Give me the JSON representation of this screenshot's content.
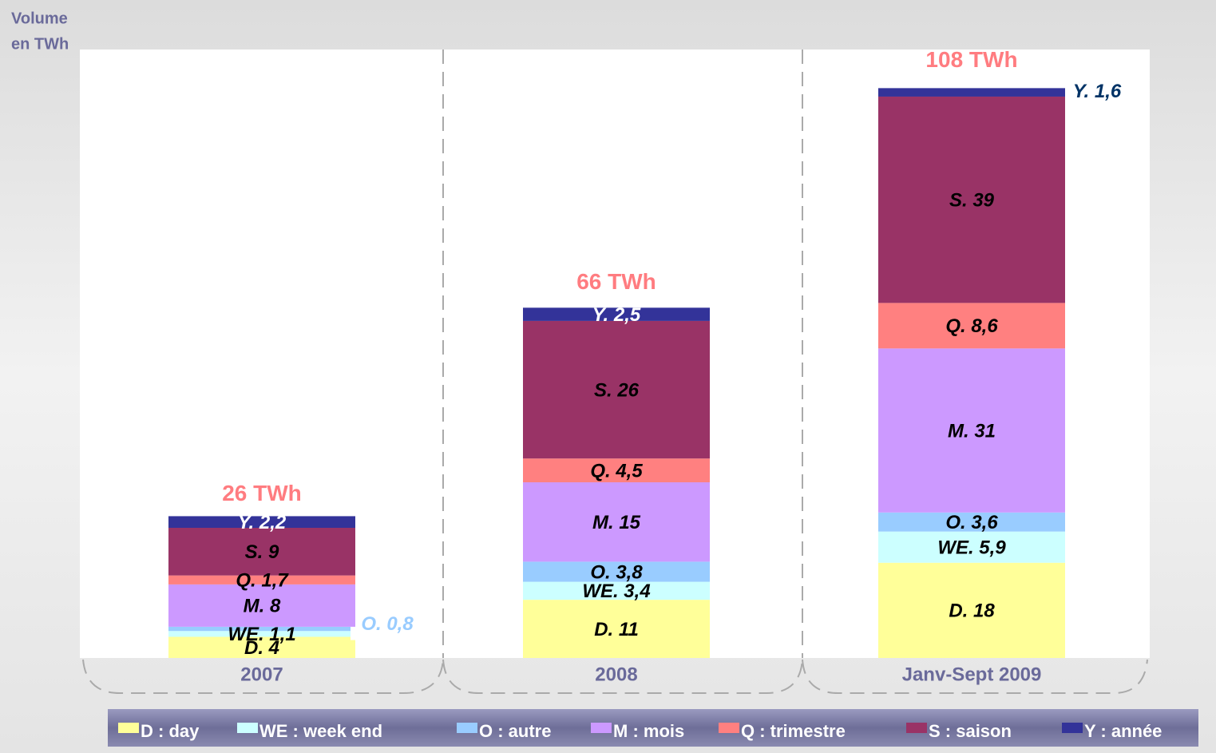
{
  "chart_data": {
    "type": "stacked_bar",
    "y_label_lines": [
      "Volume",
      "en TWh"
    ],
    "categories": [
      "2007",
      "2008",
      "Janv-Sept 2009"
    ],
    "series": [
      {
        "name": "D : day",
        "color": "#ffff99",
        "values": [
          4,
          11,
          18
        ],
        "value_labels": [
          "D.  4",
          "D.  11",
          "D.  18"
        ]
      },
      {
        "name": "WE : week end",
        "color": "#ccffff",
        "values": [
          1.1,
          3.4,
          5.9
        ],
        "value_labels": [
          "WE.  1,1",
          "WE.  3,4",
          "WE.  5,9"
        ]
      },
      {
        "name": "O : autre",
        "color": "#99ccff",
        "values": [
          0.8,
          3.8,
          3.6
        ],
        "value_labels": [
          "O.  0,8",
          "O.  3,8",
          "O.  3,6"
        ]
      },
      {
        "name": "M : mois",
        "color": "#cc99ff",
        "values": [
          8,
          15,
          31
        ],
        "value_labels": [
          "M.  8",
          "M.  15",
          "M.  31"
        ]
      },
      {
        "name": "Q : trimestre",
        "color": "#ff8080",
        "values": [
          1.7,
          4.5,
          8.6
        ],
        "value_labels": [
          "Q.  1,7",
          "Q.  4,5",
          "Q.  8,6"
        ]
      },
      {
        "name": "S : saison",
        "color": "#993366",
        "values": [
          9,
          26,
          39
        ],
        "value_labels": [
          "S.  9",
          "S.  26",
          "S.  39"
        ]
      },
      {
        "name": "Y : année",
        "color": "#333399",
        "values": [
          2.2,
          2.5,
          1.6
        ],
        "value_labels": [
          "Y.  2,2",
          "Y.  2,5",
          "Y.  1,6"
        ]
      }
    ],
    "totals": [
      26,
      66,
      108
    ],
    "total_labels": [
      "26 TWh",
      "66 TWh",
      "108 TWh"
    ],
    "ylim": [
      0,
      115
    ]
  }
}
